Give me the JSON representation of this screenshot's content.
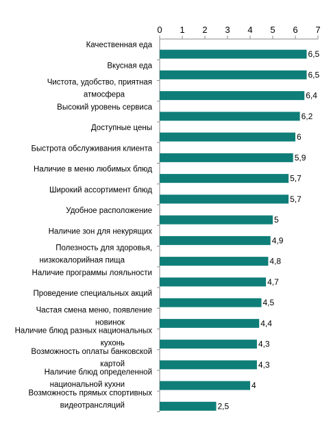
{
  "chart_data": {
    "type": "bar",
    "orientation": "horizontal",
    "title": "",
    "xlabel": "",
    "ylabel": "",
    "xlim": [
      0,
      7
    ],
    "x_ticks": [
      "0",
      "1",
      "2",
      "3",
      "4",
      "5",
      "6",
      "7"
    ],
    "axis_position": "top",
    "grid": false,
    "bar_color": "#0F7E78",
    "categories": [
      [
        "Качественная еда"
      ],
      [
        "Вкусная еда"
      ],
      [
        "Чистота, удобство, приятная",
        "атмосфера"
      ],
      [
        "Высокий уровень сервиса"
      ],
      [
        "Доступные цены"
      ],
      [
        "Быстрота обслуживания клиента"
      ],
      [
        "Наличие в меню любимых блюд"
      ],
      [
        "Широкий ассортимент блюд"
      ],
      [
        "Удобное расположение"
      ],
      [
        "Наличие зон для некурящих"
      ],
      [
        "Полезность для здоровья,",
        "низкокалорийная пища"
      ],
      [
        "Наличие программы лояльности"
      ],
      [
        "Проведение специальных акций"
      ],
      [
        "Частая смена меню, появление",
        "новинок"
      ],
      [
        "Наличие блюд разных национальных",
        "кухонь"
      ],
      [
        "Возможность оплаты банковской",
        "картой"
      ],
      [
        "Наличие блюд определенной",
        "национальной кухни"
      ],
      [
        "Возможность прямых спортивных",
        "видеотрансляций"
      ]
    ],
    "values": [
      6.5,
      6.5,
      6.4,
      6.2,
      6,
      5.9,
      5.7,
      5.7,
      5,
      4.9,
      4.8,
      4.7,
      4.5,
      4.4,
      4.3,
      4.3,
      4,
      2.5
    ],
    "value_labels": [
      "6,5",
      "6,5",
      "6,4",
      "6,2",
      "6",
      "5,9",
      "5,7",
      "5,7",
      "5",
      "4,9",
      "4,8",
      "4,7",
      "4,5",
      "4,4",
      "4,3",
      "4,3",
      "4",
      "2,5"
    ]
  }
}
